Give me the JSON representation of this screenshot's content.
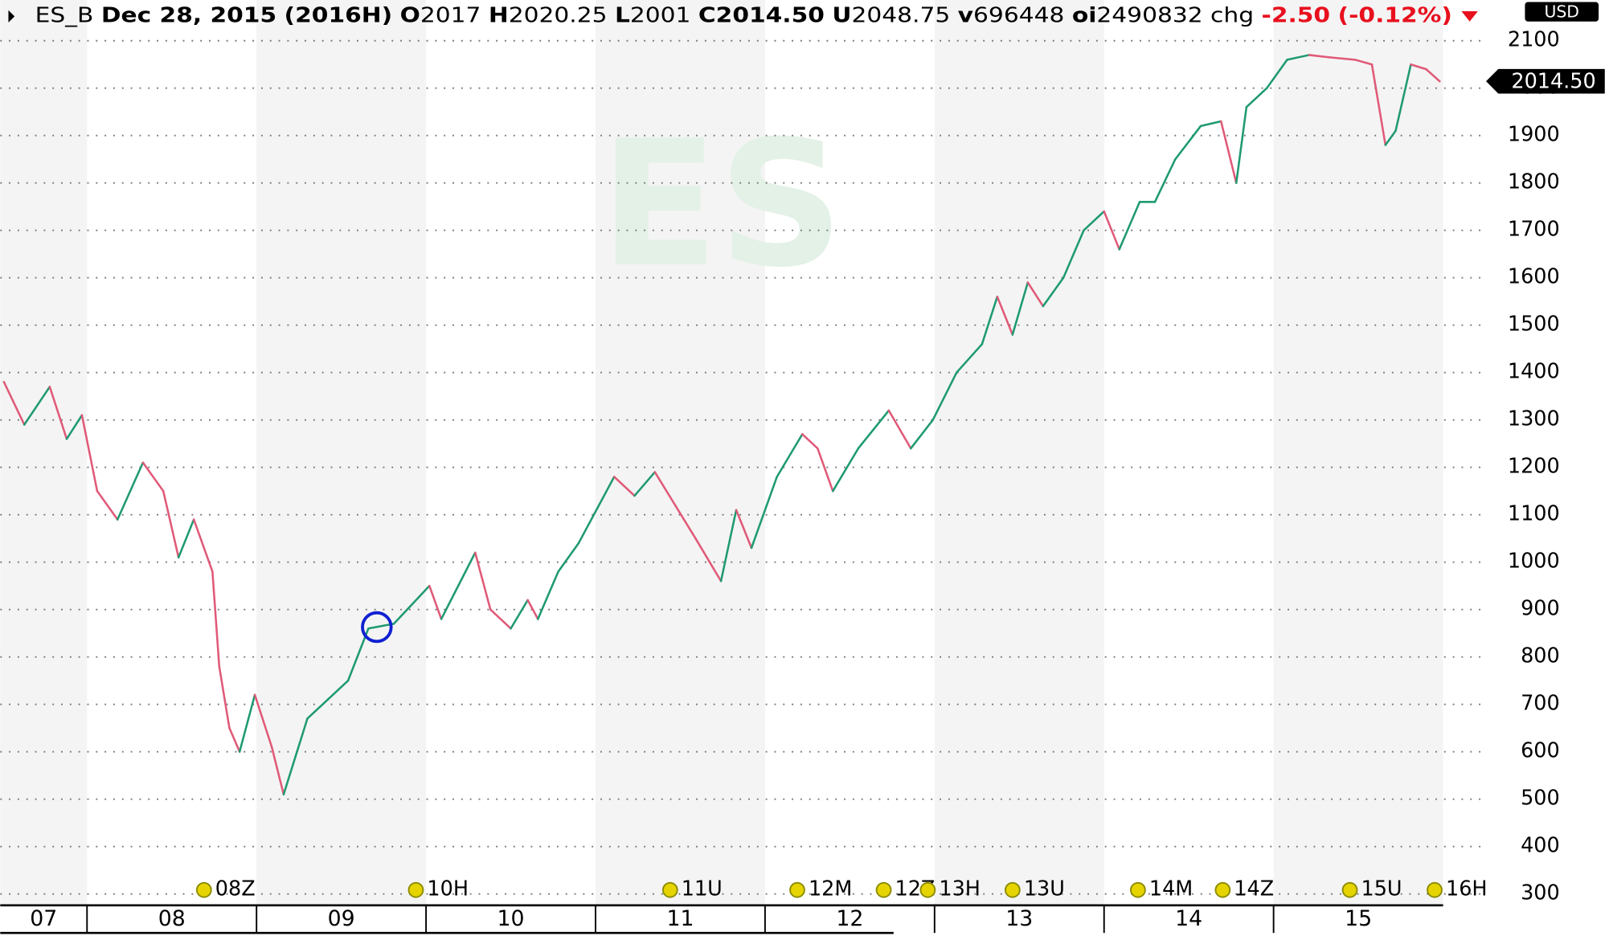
{
  "chart_data": {
    "type": "line",
    "symbol": "ES_B",
    "date": "Dec 28, 2015",
    "contract": "(2016H)",
    "quote": [
      {
        "label": "O",
        "value": "2017"
      },
      {
        "label": "H",
        "value": "2020.25"
      },
      {
        "label": "L",
        "value": "2001"
      },
      {
        "label": "C",
        "value": "2014.50"
      },
      {
        "label": "U",
        "value": "2048.75"
      },
      {
        "label": "v",
        "value": "696448"
      },
      {
        "label": "oi",
        "value": "2490832"
      }
    ],
    "change_label": "chg",
    "change": "-2.50",
    "change_pct": "(-0.12%)",
    "currency": "USD",
    "watermark": "ES",
    "price_tag": {
      "value": 2014.5,
      "label": "2014.50"
    },
    "up_color": "#1f9a72",
    "down_color": "#e05a78",
    "x": [
      2007.51,
      2007.63,
      2007.78,
      2007.88,
      2007.97,
      2008.06,
      2008.18,
      2008.33,
      2008.45,
      2008.54,
      2008.63,
      2008.74,
      2008.78,
      2008.84,
      2008.9,
      2008.99,
      2009.09,
      2009.16,
      2009.3,
      2009.42,
      2009.54,
      2009.66,
      2009.81,
      2010.02,
      2010.09,
      2010.29,
      2010.38,
      2010.5,
      2010.6,
      2010.66,
      2010.78,
      2010.9,
      2011.11,
      2011.23,
      2011.35,
      2011.47,
      2011.59,
      2011.74,
      2011.83,
      2011.92,
      2012.07,
      2012.22,
      2012.31,
      2012.4,
      2012.55,
      2012.73,
      2012.86,
      2012.99,
      2013.13,
      2013.28,
      2013.37,
      2013.46,
      2013.55,
      2013.64,
      2013.76,
      2013.88,
      2014.0,
      2014.09,
      2014.21,
      2014.3,
      2014.42,
      2014.57,
      2014.69,
      2014.78,
      2014.84,
      2014.96,
      2015.08,
      2015.21,
      2015.33,
      2015.48,
      2015.58,
      2015.66,
      2015.72,
      2015.81,
      2015.9,
      2015.98
    ],
    "values": [
      1380,
      1290,
      1370,
      1260,
      1310,
      1150,
      1090,
      1210,
      1150,
      1010,
      1090,
      980,
      780,
      650,
      600,
      720,
      610,
      510,
      670,
      710,
      750,
      860,
      870,
      950,
      880,
      1020,
      900,
      860,
      920,
      880,
      980,
      1040,
      1180,
      1140,
      1190,
      1120,
      1050,
      960,
      1110,
      1030,
      1180,
      1270,
      1240,
      1150,
      1240,
      1320,
      1240,
      1300,
      1400,
      1460,
      1560,
      1480,
      1590,
      1540,
      1600,
      1700,
      1740,
      1660,
      1760,
      1760,
      1850,
      1920,
      1930,
      1800,
      1960,
      2000,
      2060,
      2070,
      2065,
      2060,
      2050,
      1880,
      1910,
      2050,
      2040,
      2014.5
    ],
    "xlim": [
      2007.488,
      2016
    ],
    "ylim": [
      276,
      2186
    ],
    "yticks": [
      300,
      400,
      500,
      600,
      700,
      800,
      900,
      1000,
      1100,
      1200,
      1300,
      1400,
      1500,
      1600,
      1700,
      1800,
      1900,
      2000,
      2100
    ],
    "xticks": [
      {
        "value": 2007,
        "label": "07"
      },
      {
        "value": 2008,
        "label": "08"
      },
      {
        "value": 2009,
        "label": "09"
      },
      {
        "value": 2010,
        "label": "10"
      },
      {
        "value": 2011,
        "label": "11"
      },
      {
        "value": 2012,
        "label": "12"
      },
      {
        "value": 2013,
        "label": "13"
      },
      {
        "value": 2014,
        "label": "14"
      },
      {
        "value": 2015,
        "label": "15"
      }
    ],
    "grid": true,
    "rollovers": [
      {
        "x": 2008.69,
        "label": "08Z"
      },
      {
        "x": 2009.94,
        "label": "10H"
      },
      {
        "x": 2011.44,
        "label": "11U"
      },
      {
        "x": 2012.19,
        "label": "12M"
      },
      {
        "x": 2012.7,
        "label": "12Z"
      },
      {
        "x": 2012.96,
        "label": "13H"
      },
      {
        "x": 2013.46,
        "label": "13U"
      },
      {
        "x": 2014.2,
        "label": "14M"
      },
      {
        "x": 2014.7,
        "label": "14Z"
      },
      {
        "x": 2015.45,
        "label": "15U"
      },
      {
        "x": 2015.95,
        "label": "16H"
      }
    ]
  }
}
